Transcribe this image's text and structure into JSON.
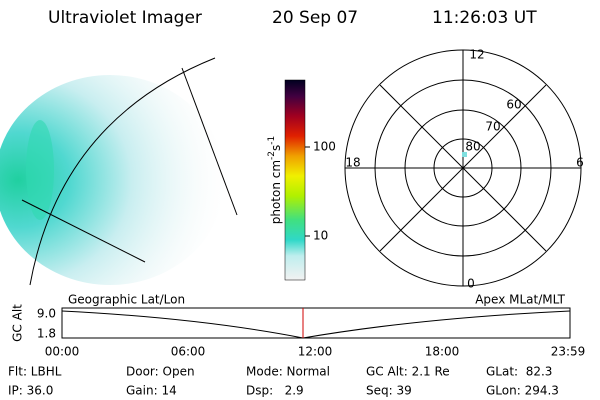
{
  "header": {
    "title": "Ultraviolet Imager",
    "date": "20 Sep 07",
    "time": "11:26:03 UT"
  },
  "colorbar": {
    "label": {
      "base": "photon cm",
      "exp1": "-2",
      "mid": "s",
      "exp2": "-1"
    },
    "ticks": [
      "100",
      "10"
    ]
  },
  "polar": {
    "mlt_labels": [
      "12",
      "18",
      "6",
      "0"
    ],
    "lat_labels": [
      "60",
      "70",
      "80"
    ]
  },
  "timeline": {
    "left_title": "Geographic Lat/Lon",
    "right_title": "Apex MLat/MLT",
    "axis_label": "GC Alt",
    "y_labels": [
      "9.0",
      "1.8"
    ],
    "x_labels": [
      "00:00",
      "06:00",
      "12:00",
      "18:00",
      "23:59"
    ]
  },
  "footer": [
    [
      "Flt: LBHL",
      "IP: 36.0"
    ],
    [
      "Door: Open",
      "Gain: 14"
    ],
    [
      "Mode: Normal",
      "Dsp:   2.9"
    ],
    [
      "GC Alt: 2.1 Re",
      "Seq: 39"
    ],
    [
      "GLat:  82.3",
      "GLon: 294.3"
    ]
  ]
}
